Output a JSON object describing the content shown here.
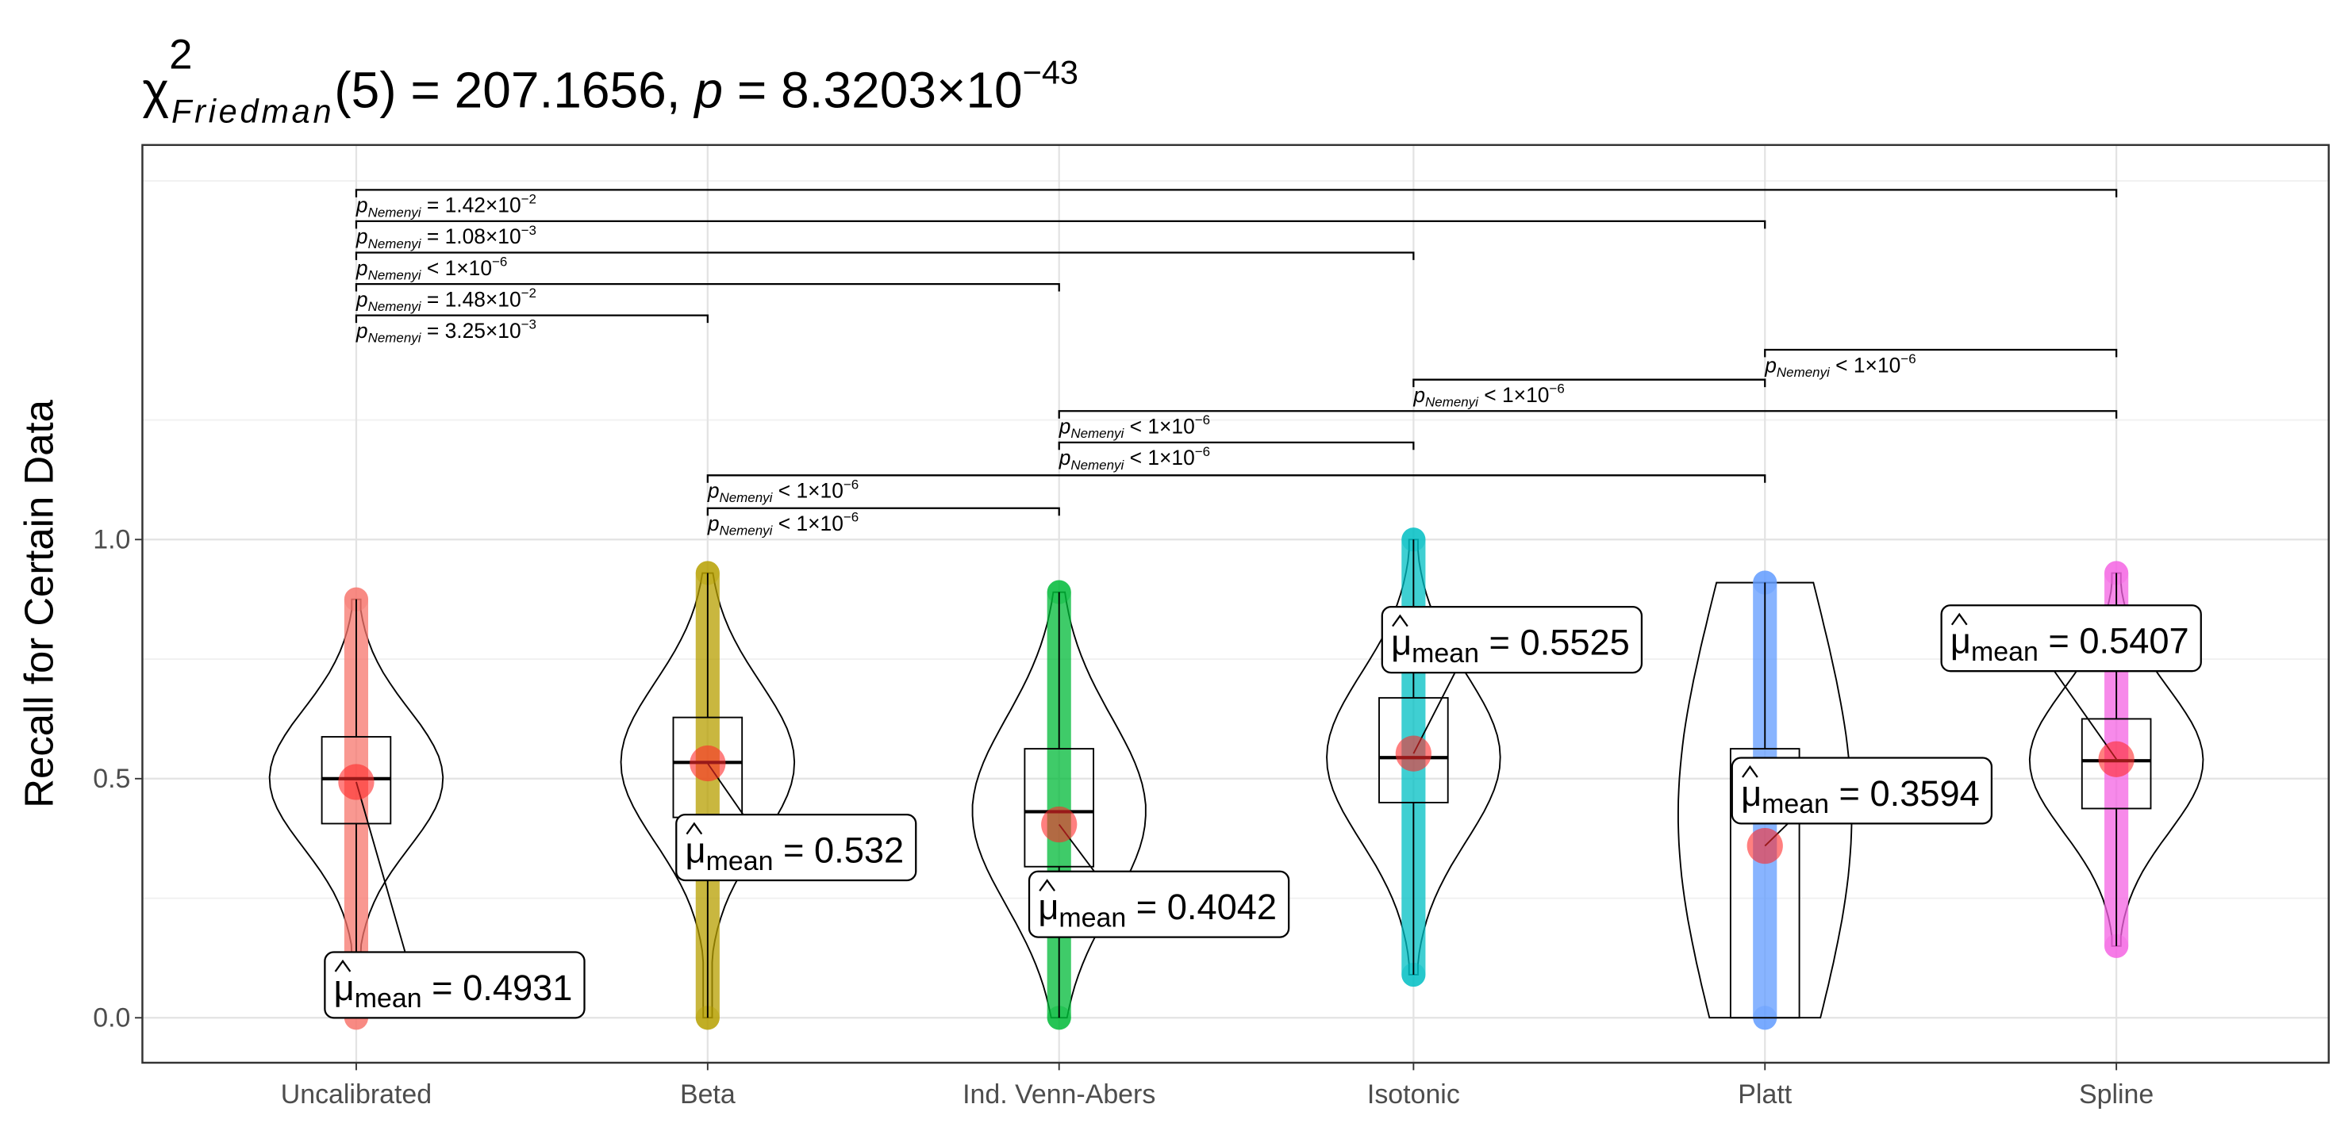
{
  "chart_data": {
    "type": "violin",
    "title": {
      "symbol": "χ",
      "superscript": "2",
      "subscript": "Friedman",
      "statistic": "(5) = 207.1656, ",
      "p_symbol": "p",
      "p_value": " = 8.3203×10",
      "p_exponent": "−43"
    },
    "ylabel": "Recall for Certain Data",
    "categories": [
      "Uncalibrated",
      "Beta",
      "Ind. Venn-Abers",
      "Isotonic",
      "Platt",
      "Spline"
    ],
    "colors": [
      "#F8766D",
      "#B79F00",
      "#00BA38",
      "#00BFC4",
      "#619CFF",
      "#F564E3"
    ],
    "min": [
      0,
      0,
      0,
      0.09,
      0,
      0.15
    ],
    "q1": [
      0.406,
      0.419,
      0.316,
      0.45,
      0,
      0.4375
    ],
    "median": [
      0.5,
      0.534,
      0.431,
      0.544,
      0.425,
      0.5375
    ],
    "q3": [
      0.5875,
      0.628,
      0.5625,
      0.669,
      0.5625,
      0.625
    ],
    "max": [
      0.875,
      0.93,
      0.89,
      1.0,
      0.91,
      0.93
    ],
    "means": [
      0.4931,
      0.532,
      0.4042,
      0.5525,
      0.3594,
      0.5407
    ],
    "mean_label": {
      "symbol": "μ",
      "subscript": "mean",
      "relation": " = "
    },
    "comparisons": [
      {
        "groups": [
          "Uncalibrated",
          "Spline"
        ],
        "p": "p",
        "sub": "Nemenyi",
        "relation": " = ",
        "mantissa": "1.42×10",
        "exponent": "−2"
      },
      {
        "groups": [
          "Uncalibrated",
          "Platt"
        ],
        "p": "p",
        "sub": "Nemenyi",
        "relation": " = ",
        "mantissa": "1.08×10",
        "exponent": "−3"
      },
      {
        "groups": [
          "Uncalibrated",
          "Isotonic"
        ],
        "p": "p",
        "sub": "Nemenyi",
        "relation": " < ",
        "mantissa": "1×10",
        "exponent": "−6"
      },
      {
        "groups": [
          "Uncalibrated",
          "Ind. Venn-Abers"
        ],
        "p": "p",
        "sub": "Nemenyi",
        "relation": " = ",
        "mantissa": "1.48×10",
        "exponent": "−2"
      },
      {
        "groups": [
          "Uncalibrated",
          "Beta"
        ],
        "p": "p",
        "sub": "Nemenyi",
        "relation": " = ",
        "mantissa": "3.25×10",
        "exponent": "−3"
      },
      {
        "groups": [
          "Platt",
          "Spline"
        ],
        "p": "p",
        "sub": "Nemenyi",
        "relation": " < ",
        "mantissa": "1×10",
        "exponent": "−6"
      },
      {
        "groups": [
          "Isotonic",
          "Platt"
        ],
        "p": "p",
        "sub": "Nemenyi",
        "relation": " < ",
        "mantissa": "1×10",
        "exponent": "−6"
      },
      {
        "groups": [
          "Ind. Venn-Abers",
          "Spline"
        ],
        "p": "p",
        "sub": "Nemenyi",
        "relation": " < ",
        "mantissa": "1×10",
        "exponent": "−6"
      },
      {
        "groups": [
          "Ind. Venn-Abers",
          "Isotonic"
        ],
        "p": "p",
        "sub": "Nemenyi",
        "relation": " < ",
        "mantissa": "1×10",
        "exponent": "−6"
      },
      {
        "groups": [
          "Beta",
          "Platt"
        ],
        "p": "p",
        "sub": "Nemenyi",
        "relation": " < ",
        "mantissa": "1×10",
        "exponent": "−6"
      },
      {
        "groups": [
          "Beta",
          "Ind. Venn-Abers"
        ],
        "p": "p",
        "sub": "Nemenyi",
        "relation": " < ",
        "mantissa": "1×10",
        "exponent": "−6"
      }
    ],
    "ylim": [
      -0.094,
      1.825
    ],
    "yticks": [
      {
        "value": 0,
        "label": "0.0"
      },
      {
        "value": 0.5,
        "label": "0.5"
      },
      {
        "value": 1,
        "label": "1.0"
      }
    ],
    "grid": true
  }
}
